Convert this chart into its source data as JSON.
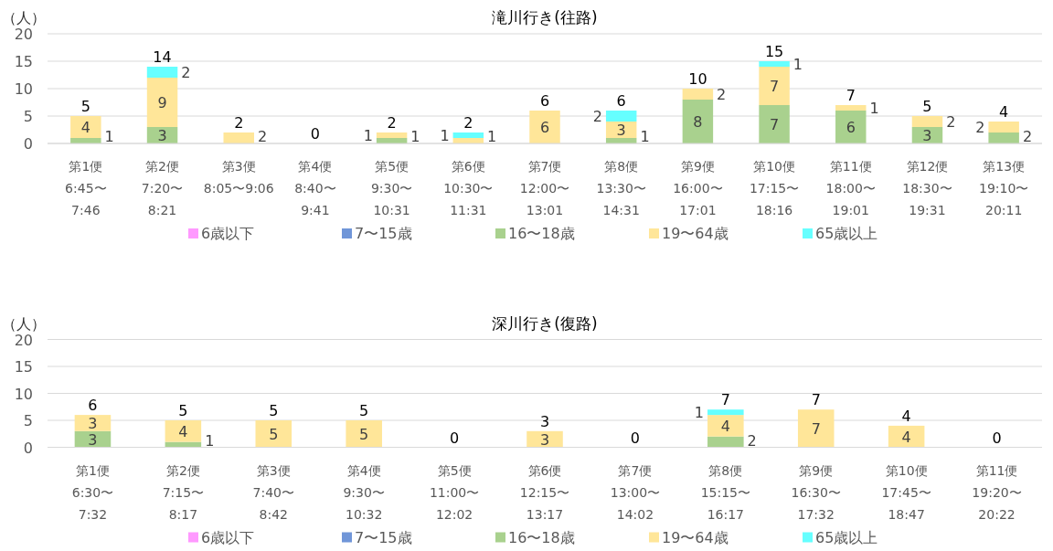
{
  "chart_data": [
    {
      "type": "bar",
      "stacked": true,
      "title": "滝川行き(往路)",
      "ylabel": "（人）",
      "ylim": [
        0,
        20
      ],
      "yticks": [
        0,
        5,
        10,
        15,
        20
      ],
      "grid": "y",
      "legend": "bottom",
      "categories": [
        "第1便\n6:45〜\n7:46",
        "第2便\n7:20〜\n8:21",
        "第3便\n8:05〜9:06",
        "第4便\n8:40〜\n9:41",
        "第5便\n9:30〜\n10:31",
        "第6便\n10:30〜\n11:31",
        "第7便\n12:00〜\n13:01",
        "第8便\n13:30〜\n14:31",
        "第9便\n16:00〜\n17:01",
        "第10便\n17:15〜\n18:16",
        "第11便\n18:00〜\n19:01",
        "第12便\n18:30〜\n19:31",
        "第13便\n19:10〜\n20:11"
      ],
      "series": [
        {
          "name": "6歳以下",
          "color": "#ff99ff",
          "values": [
            0,
            0,
            0,
            0,
            0,
            0,
            0,
            0,
            0,
            0,
            0,
            0,
            0
          ],
          "value_labels": [
            null,
            null,
            null,
            null,
            null,
            null,
            null,
            null,
            null,
            null,
            null,
            null,
            null
          ]
        },
        {
          "name": "7〜15歳",
          "color": "#7096d8",
          "values": [
            0,
            0,
            0,
            0,
            0,
            0,
            0,
            0,
            0,
            0,
            0,
            0,
            0
          ],
          "value_labels": [
            null,
            null,
            null,
            null,
            null,
            null,
            null,
            null,
            null,
            null,
            null,
            null,
            null
          ]
        },
        {
          "name": "16〜18歳",
          "color": "#a9d18e",
          "values": [
            1,
            3,
            0,
            0,
            1,
            0,
            0,
            1,
            8,
            7,
            6,
            3,
            2
          ],
          "value_labels": [
            "1",
            "3",
            null,
            null,
            "1",
            null,
            null,
            "1",
            "8",
            "7",
            "6",
            "3",
            "2"
          ]
        },
        {
          "name": "19〜64歳",
          "color": "#ffe699",
          "values": [
            4,
            9,
            2,
            0,
            1,
            1,
            6,
            3,
            2,
            7,
            1,
            2,
            2
          ],
          "value_labels": [
            "4",
            "9",
            "2",
            null,
            "1",
            "1",
            "6",
            "3",
            "2",
            "7",
            "1",
            "2",
            "2"
          ]
        },
        {
          "name": "65歳以上",
          "color": "#66ffff",
          "values": [
            0,
            2,
            0,
            0,
            0,
            1,
            0,
            2,
            0,
            1,
            0,
            0,
            0
          ],
          "value_labels": [
            null,
            "2",
            null,
            null,
            null,
            "1",
            null,
            "2",
            null,
            "1",
            null,
            null,
            null
          ]
        }
      ],
      "totals": [
        "5",
        "14",
        "2",
        "0",
        "2",
        "2",
        "6",
        "6",
        "10",
        "15",
        "7",
        "5",
        "4"
      ]
    },
    {
      "type": "bar",
      "stacked": true,
      "title": "深川行き(復路)",
      "ylabel": "（人）",
      "ylim": [
        0,
        20
      ],
      "yticks": [
        0,
        5,
        10,
        15,
        20
      ],
      "grid": "y",
      "legend": "bottom",
      "categories": [
        "第1便\n6:30〜\n7:32",
        "第2便\n7:15〜\n8:17",
        "第3便\n7:40〜\n8:42",
        "第4便\n9:30〜\n10:32",
        "第5便\n11:00〜\n12:02",
        "第6便\n12:15〜\n13:17",
        "第7便\n13:00〜\n14:02",
        "第8便\n15:15〜\n16:17",
        "第9便\n16:30〜\n17:32",
        "第10便\n17:45〜\n18:47",
        "第11便\n19:20〜\n20:22"
      ],
      "series": [
        {
          "name": "6歳以下",
          "color": "#ff99ff",
          "values": [
            0,
            0,
            0,
            0,
            0,
            0,
            0,
            0,
            0,
            0,
            0
          ],
          "value_labels": [
            null,
            null,
            null,
            null,
            null,
            null,
            null,
            null,
            null,
            null,
            null
          ]
        },
        {
          "name": "7〜15歳",
          "color": "#7096d8",
          "values": [
            0,
            0,
            0,
            0,
            0,
            0,
            0,
            0,
            0,
            0,
            0
          ],
          "value_labels": [
            null,
            null,
            null,
            null,
            null,
            null,
            null,
            null,
            null,
            null,
            null
          ]
        },
        {
          "name": "16〜18歳",
          "color": "#a9d18e",
          "values": [
            3,
            1,
            0,
            0,
            0,
            0,
            0,
            2,
            0,
            0,
            0
          ],
          "value_labels": [
            "3",
            "1",
            null,
            null,
            null,
            null,
            null,
            "2",
            null,
            null,
            null
          ]
        },
        {
          "name": "19〜64歳",
          "color": "#ffe699",
          "values": [
            3,
            4,
            5,
            5,
            0,
            3,
            0,
            4,
            7,
            4,
            0
          ],
          "value_labels": [
            "3",
            "4",
            "5",
            "5",
            null,
            "3",
            null,
            "4",
            "7",
            "4",
            null
          ]
        },
        {
          "name": "65歳以上",
          "color": "#66ffff",
          "values": [
            0,
            0,
            0,
            0,
            0,
            0,
            0,
            1,
            0,
            0,
            0
          ],
          "value_labels": [
            null,
            null,
            null,
            null,
            null,
            null,
            null,
            "1",
            null,
            null,
            null
          ]
        }
      ],
      "totals": [
        "6",
        "5",
        "5",
        "5",
        "0",
        "3",
        "0",
        "7",
        "7",
        "4",
        "0"
      ]
    }
  ]
}
